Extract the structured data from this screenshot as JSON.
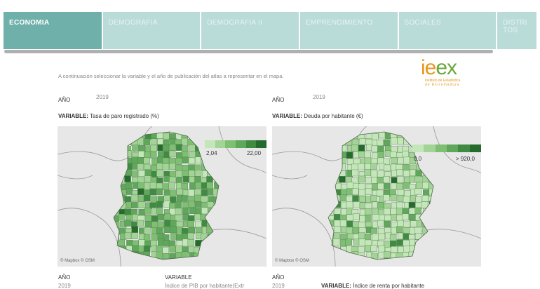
{
  "tabs": [
    {
      "label": "ECONOMIA",
      "active": true
    },
    {
      "label": "DEMOGRAFIA"
    },
    {
      "label": "DEMOGRAFIA II"
    },
    {
      "label": "EMPRENDIMIENTO"
    },
    {
      "label": "SOCIALES"
    },
    {
      "label": "DISTRITOS"
    }
  ],
  "intro": "A continuación seleccionar la variable  y el año de publicación del atlas a representar en el mapa.",
  "logo": {
    "text": "ieex",
    "sub1": "Instituto de Estadística",
    "sub2": "de Extremadura"
  },
  "panels": [
    {
      "year_label": "AÑO",
      "year": "2019",
      "variable_label": "VARIABLE:",
      "variable": "Tasa de paro registrado (%)",
      "legend_min": "2,04",
      "legend_max": "22,00",
      "attribution": "© Mapbox © OSM"
    },
    {
      "year_label": "AÑO",
      "year": "2019",
      "variable_label": "VARIABLE:",
      "variable": "Deuda por habitante (€)",
      "legend_min": "0,0",
      "legend_max": "> 920,0",
      "attribution": "© Mapbox © OSM"
    }
  ],
  "bottom": {
    "left": {
      "year_label": "AÑO",
      "year": "2019",
      "variable_label": "VARIABLE",
      "variable": "Índice de PIB por habitante(Extr"
    },
    "right": {
      "year_label": "AÑO",
      "year": "2019",
      "variable_label": "VARIABLE:",
      "variable": "Índice de renta por habitante"
    }
  },
  "colors": {
    "tab_active": "#6fb0aa",
    "tab": "#b9dcd9",
    "greens": [
      "#c4e7b9",
      "#a2d495",
      "#7fbf74",
      "#5fa75a",
      "#3f8b42",
      "#256b2c"
    ],
    "logo_orange": "#e8961e",
    "logo_green": "#6aa83a"
  }
}
